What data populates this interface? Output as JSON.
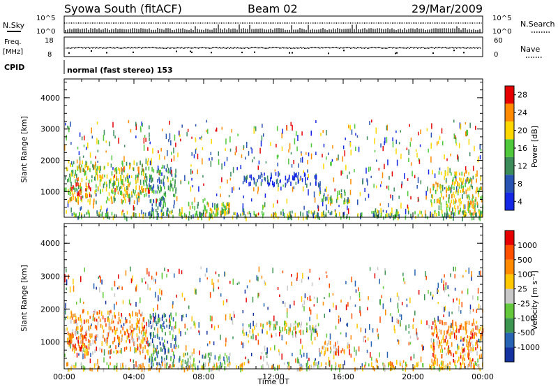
{
  "header": {
    "station": "Syowa South (fitACF)",
    "beam": "Beam 02",
    "date": "29/Mar/2009"
  },
  "top_panels": {
    "nsky_label": "N.Sky",
    "nsky_ticks": [
      "10^5",
      "10^0"
    ],
    "nsearch_label": "N.Search",
    "nsearch_ticks": [
      "10^5",
      "10^0"
    ],
    "freq_label": "Freq.",
    "freq_unit": "[MHz]",
    "freq_ticks": [
      "18",
      "8"
    ],
    "nave_label": "Nave",
    "nave_ticks": [
      "60",
      "0"
    ],
    "cpid_label": "CPID",
    "cpid_text": "normal (fast stereo) 153"
  },
  "chart_data": [
    {
      "type": "heatmap",
      "name": "power-panel",
      "xlabel": "",
      "ylabel": "Slant Range [km]",
      "x_unit": "hours UT",
      "xlim": [
        0,
        24
      ],
      "ylim": [
        180,
        4600
      ],
      "yticks": [
        "1000",
        "2000",
        "3000",
        "4000"
      ],
      "colorbar": {
        "label": "Power [dB]",
        "ticks": [
          "4",
          "8",
          "12",
          "16",
          "20",
          "24",
          "28"
        ],
        "colors": [
          "#1428e6",
          "#2855b4",
          "#3c8c5a",
          "#50c83c",
          "#ffd700",
          "#ff8c00",
          "#e60000"
        ]
      },
      "regions": [
        {
          "t0": 0.1,
          "t1": 4.8,
          "r0": 700,
          "r1": 2000,
          "level": 0.55
        },
        {
          "t0": 0.3,
          "t1": 1.5,
          "r0": 800,
          "r1": 1300,
          "level": 0.85
        },
        {
          "t0": 4.8,
          "t1": 6.4,
          "r0": 300,
          "r1": 1900,
          "level": 0.35
        },
        {
          "t0": 6.5,
          "t1": 9.5,
          "r0": 250,
          "r1": 700,
          "level": 0.55
        },
        {
          "t0": 10.2,
          "t1": 14.6,
          "r0": 1250,
          "r1": 1650,
          "level": 0.15
        },
        {
          "t0": 14.6,
          "t1": 16.4,
          "r0": 700,
          "r1": 1100,
          "level": 0.45
        },
        {
          "t0": 17.5,
          "t1": 19.5,
          "r0": 250,
          "r1": 500,
          "level": 0.5
        },
        {
          "t0": 21.0,
          "t1": 24.0,
          "r0": 300,
          "r1": 1700,
          "level": 0.6
        },
        {
          "t0": 0.0,
          "t1": 24.0,
          "r0": 200,
          "r1": 400,
          "level": 0.45
        }
      ]
    },
    {
      "type": "heatmap",
      "name": "velocity-panel",
      "xlabel": "Time UT",
      "ylabel": "Slant Range [km]",
      "x_unit": "hours UT",
      "xlim": [
        0,
        24
      ],
      "ylim": [
        180,
        4600
      ],
      "xticks": [
        "00:00",
        "04:00",
        "08:00",
        "12:00",
        "16:00",
        "20:00",
        "00:00"
      ],
      "yticks": [
        "1000",
        "2000",
        "3000",
        "4000"
      ],
      "colorbar": {
        "label": "Velocity [m s⁻¹]",
        "ticks": [
          "1000",
          "500",
          "100",
          "25",
          "-25",
          "-100",
          "-500",
          "-1000"
        ],
        "colors": [
          "#1432a0",
          "#2864b4",
          "#3c9650",
          "#64c83c",
          "#c8c8c8",
          "#ffc800",
          "#ff8c00",
          "#ff5000",
          "#e60000"
        ]
      },
      "regions": [
        {
          "t0": 0.1,
          "t1": 4.8,
          "r0": 700,
          "r1": 2000,
          "level": 0.7
        },
        {
          "t0": 0.3,
          "t1": 1.5,
          "r0": 800,
          "r1": 1300,
          "level": 0.8
        },
        {
          "t0": 4.8,
          "t1": 6.4,
          "r0": 300,
          "r1": 1900,
          "level": 0.25
        },
        {
          "t0": 6.5,
          "t1": 9.5,
          "r0": 250,
          "r1": 700,
          "level": 0.35
        },
        {
          "t0": 10.2,
          "t1": 14.6,
          "r0": 1250,
          "r1": 1650,
          "level": 0.5
        },
        {
          "t0": 14.6,
          "t1": 16.4,
          "r0": 700,
          "r1": 1100,
          "level": 0.65
        },
        {
          "t0": 17.5,
          "t1": 19.5,
          "r0": 250,
          "r1": 500,
          "level": 0.65
        },
        {
          "t0": 21.0,
          "t1": 24.0,
          "r0": 300,
          "r1": 1700,
          "level": 0.75
        },
        {
          "t0": 0.0,
          "t1": 24.0,
          "r0": 200,
          "r1": 400,
          "level": 0.55
        }
      ]
    }
  ]
}
